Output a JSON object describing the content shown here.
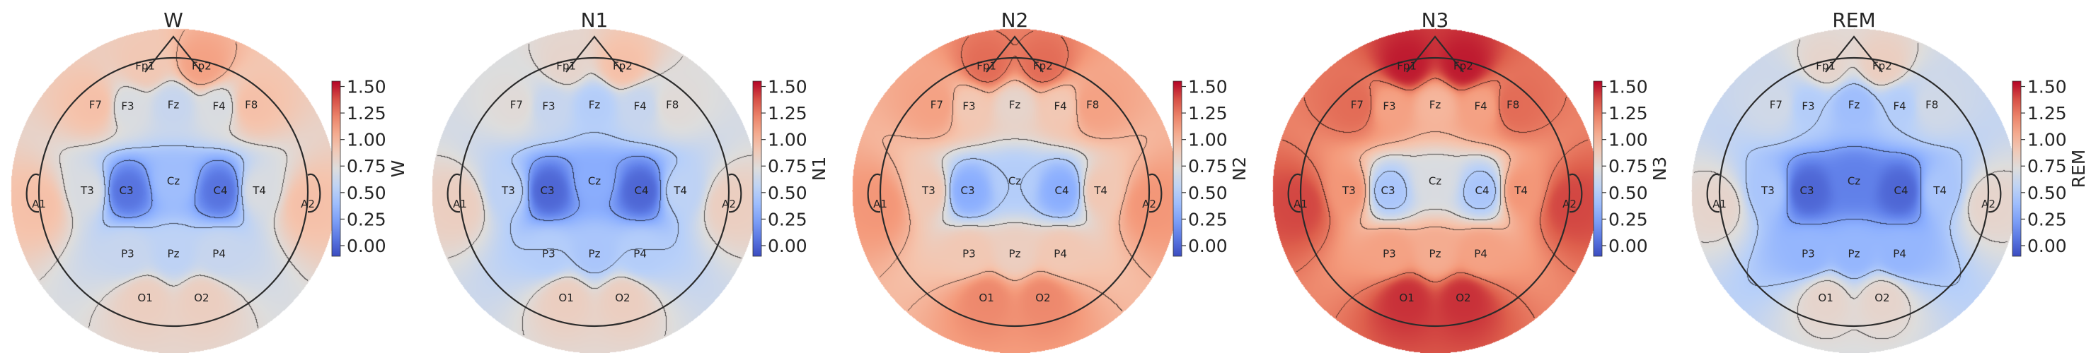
{
  "chart_data": {
    "type": "heatmap",
    "subtype": "eeg-topomap",
    "colormap": "coolwarm",
    "vmin": -0.1,
    "vmax": 1.55,
    "colorbar_ticks": [
      "1.50",
      "1.25",
      "1.00",
      "0.75",
      "0.50",
      "0.25",
      "0.00"
    ],
    "colorbar_tick_values": [
      1.5,
      1.25,
      1.0,
      0.75,
      0.5,
      0.25,
      0.0
    ],
    "electrodes": [
      "Fp1",
      "Fp2",
      "F7",
      "F3",
      "Fz",
      "F4",
      "F8",
      "A1",
      "T3",
      "C3",
      "Cz",
      "C4",
      "T4",
      "A2",
      "P3",
      "Pz",
      "P4",
      "O1",
      "O2"
    ],
    "panels": [
      {
        "title": "W",
        "colorbar_label": "W",
        "values": {
          "Fp1": 0.9,
          "Fp2": 1.1,
          "F7": 0.95,
          "F3": 0.7,
          "Fz": 0.6,
          "F4": 0.7,
          "F8": 0.95,
          "A1": 0.95,
          "T3": 0.7,
          "C3": 0.05,
          "Cz": 0.4,
          "C4": 0.05,
          "T4": 0.7,
          "A2": 0.95,
          "P3": 0.6,
          "Pz": 0.55,
          "P4": 0.6,
          "O1": 0.85,
          "O2": 0.85
        }
      },
      {
        "title": "N1",
        "colorbar_label": "N1",
        "values": {
          "Fp1": 0.8,
          "Fp2": 0.95,
          "F7": 0.75,
          "F3": 0.6,
          "Fz": 0.5,
          "F4": 0.6,
          "F8": 0.75,
          "A1": 0.85,
          "T3": 0.55,
          "C3": 0.0,
          "Cz": 0.3,
          "C4": 0.0,
          "T4": 0.55,
          "A2": 0.85,
          "P3": 0.5,
          "Pz": 0.45,
          "P4": 0.5,
          "O1": 0.85,
          "O2": 0.85
        }
      },
      {
        "title": "N2",
        "colorbar_label": "N2",
        "values": {
          "Fp1": 1.3,
          "Fp2": 1.3,
          "F7": 1.1,
          "F3": 0.9,
          "Fz": 0.8,
          "F4": 0.9,
          "F8": 1.1,
          "A1": 1.15,
          "T3": 0.9,
          "C3": 0.3,
          "Cz": 0.5,
          "C4": 0.3,
          "T4": 0.9,
          "A2": 1.15,
          "P3": 0.9,
          "Pz": 0.85,
          "P4": 0.9,
          "O1": 1.2,
          "O2": 1.2
        }
      },
      {
        "title": "N3",
        "colorbar_label": "N3",
        "values": {
          "Fp1": 1.5,
          "Fp2": 1.5,
          "F7": 1.3,
          "F3": 1.1,
          "Fz": 1.0,
          "F4": 1.1,
          "F8": 1.3,
          "A1": 1.4,
          "T3": 1.15,
          "C3": 0.45,
          "Cz": 0.7,
          "C4": 0.45,
          "T4": 1.15,
          "A2": 1.4,
          "P3": 1.1,
          "Pz": 1.05,
          "P4": 1.1,
          "O1": 1.45,
          "O2": 1.45
        }
      },
      {
        "title": "REM",
        "colorbar_label": "REM",
        "values": {
          "Fp1": 0.8,
          "Fp2": 0.85,
          "F7": 0.65,
          "F3": 0.5,
          "Fz": 0.4,
          "F4": 0.5,
          "F8": 0.65,
          "A1": 0.8,
          "T3": 0.45,
          "C3": 0.0,
          "Cz": 0.1,
          "C4": 0.0,
          "T4": 0.45,
          "A2": 0.8,
          "P3": 0.35,
          "Pz": 0.35,
          "P4": 0.35,
          "O1": 0.8,
          "O2": 0.8
        }
      }
    ]
  }
}
